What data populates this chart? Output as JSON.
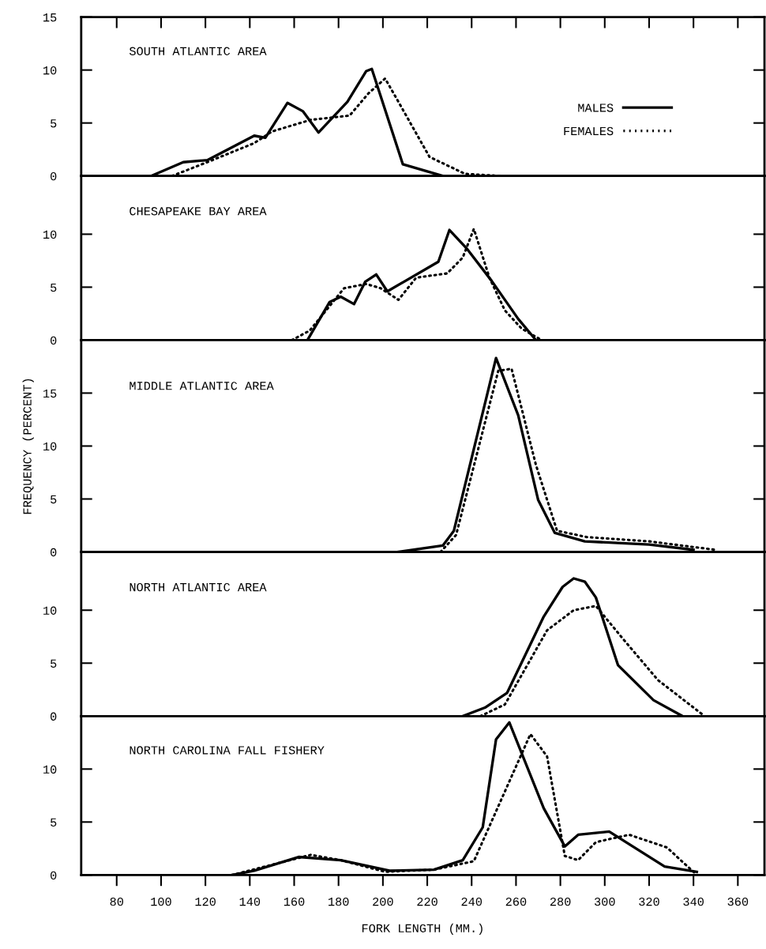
{
  "chart_data": [
    {
      "type": "line",
      "title": "SOUTH ATLANTIC AREA",
      "xlim": [
        64,
        372
      ],
      "ylim": [
        0,
        15
      ],
      "xticks": [
        80,
        100,
        120,
        140,
        160,
        180,
        200,
        220,
        240,
        260,
        280,
        300,
        320,
        340,
        360
      ],
      "yticks": [
        0,
        5,
        10,
        15
      ],
      "tick_labels": "y",
      "legend": "right",
      "series": [
        {
          "name": "MALES",
          "color": "#000000",
          "line_style": "solid",
          "x": [
            95.5,
            110,
            121,
            142,
            147,
            157,
            164,
            171,
            184,
            192.5,
            195,
            209,
            227
          ],
          "values": [
            0,
            1.3,
            1.5,
            3.8,
            3.6,
            6.9,
            6.1,
            4.1,
            7,
            9.9,
            10.1,
            1.1,
            0
          ]
        },
        {
          "name": "FEMALES",
          "color": "#000000",
          "line_style": "dotted",
          "x": [
            105,
            122,
            142,
            150,
            167.5,
            185,
            193.5,
            201,
            207,
            221,
            237,
            253
          ],
          "values": [
            0,
            1.4,
            3.1,
            4.2,
            5.3,
            5.7,
            7.8,
            9.2,
            7,
            1.8,
            0.2,
            0
          ]
        }
      ]
    },
    {
      "type": "line",
      "title": "CHESAPEAKE BAY AREA",
      "xlim": [
        64,
        372
      ],
      "ylim": [
        0,
        15.5
      ],
      "yticks": [
        0,
        5,
        10
      ],
      "tick_labels": "y",
      "series": [
        {
          "color": "#000000",
          "line_style": "solid",
          "x": [
            166,
            176,
            181,
            187,
            192,
            197,
            202,
            225,
            230,
            238,
            249,
            261,
            269
          ],
          "values": [
            0,
            3.6,
            4.1,
            3.4,
            5.5,
            6.2,
            4.6,
            7.4,
            10.4,
            8.6,
            5.6,
            2,
            0
          ]
        },
        {
          "color": "#000000",
          "line_style": "dotted",
          "x": [
            159,
            167,
            182.5,
            192.5,
            199,
            207,
            215,
            229,
            236,
            241,
            248,
            255,
            262.5,
            271.5
          ],
          "values": [
            0,
            0.9,
            4.9,
            5.3,
            4.9,
            3.8,
            5.9,
            6.3,
            7.8,
            10.5,
            5.9,
            2.8,
            1.1,
            0
          ]
        }
      ]
    },
    {
      "type": "line",
      "title": "MIDDLE ATLANTIC AREA",
      "ylabel": "FREQUENCY (PERCENT)",
      "xlim": [
        64,
        372
      ],
      "ylim": [
        0,
        20
      ],
      "yticks": [
        0,
        5,
        10,
        15
      ],
      "tick_labels": "y",
      "series": [
        {
          "color": "#000000",
          "line_style": "solid",
          "x": [
            207,
            227,
            232,
            251,
            261,
            270,
            277.5,
            291,
            320,
            340
          ],
          "values": [
            0,
            0.6,
            2,
            18.3,
            12.9,
            4.9,
            1.8,
            1.0,
            0.7,
            0.2
          ]
        },
        {
          "color": "#000000",
          "line_style": "dotted",
          "x": [
            226,
            233,
            252,
            258,
            269,
            278.5,
            292,
            320,
            350
          ],
          "values": [
            0,
            1.6,
            17.1,
            17.3,
            8.2,
            2,
            1.4,
            1.0,
            0.2
          ]
        }
      ]
    },
    {
      "type": "line",
      "title": "NORTH ATLANTIC AREA",
      "xlim": [
        64,
        372
      ],
      "ylim": [
        0,
        15.5
      ],
      "yticks": [
        0,
        5,
        10
      ],
      "tick_labels": "y",
      "series": [
        {
          "color": "#000000",
          "line_style": "solid",
          "x": [
            236,
            246,
            256,
            272.5,
            281,
            286,
            291,
            296,
            306,
            322,
            335
          ],
          "values": [
            0,
            0.8,
            2.2,
            9.4,
            12.2,
            13,
            12.7,
            11.2,
            4.8,
            1.5,
            0
          ]
        },
        {
          "color": "#000000",
          "line_style": "dotted",
          "x": [
            244,
            255,
            274,
            286,
            296,
            309,
            324,
            345
          ],
          "values": [
            0,
            1.1,
            8.1,
            10,
            10.4,
            7.1,
            3.4,
            0
          ]
        }
      ]
    },
    {
      "type": "line",
      "title": "NORTH CAROLINA FALL FISHERY",
      "xlabel": "FORK LENGTH (MM.)",
      "xlim": [
        64,
        372
      ],
      "ylim": [
        0,
        15
      ],
      "xticks": [
        80,
        100,
        120,
        140,
        160,
        180,
        200,
        220,
        240,
        260,
        280,
        300,
        320,
        340,
        360
      ],
      "yticks": [
        0,
        5,
        10
      ],
      "series": [
        {
          "color": "#000000",
          "line_style": "solid",
          "x": [
            132,
            142,
            162,
            181,
            203,
            223,
            236,
            245,
            251,
            257,
            272.5,
            282,
            288,
            302,
            327,
            341.5
          ],
          "values": [
            0,
            0.4,
            1.7,
            1.4,
            0.4,
            0.5,
            1.4,
            4.5,
            12.8,
            14.4,
            6.3,
            2.7,
            3.8,
            4.1,
            0.8,
            0.3
          ]
        },
        {
          "color": "#000000",
          "line_style": "dotted",
          "x": [
            132,
            167.5,
            181,
            201,
            223,
            241,
            266.5,
            274,
            282,
            288,
            296,
            311,
            328,
            341.5
          ],
          "values": [
            0,
            1.9,
            1.4,
            0.3,
            0.5,
            1.3,
            13.3,
            11.2,
            1.8,
            1.4,
            3.1,
            3.8,
            2.6,
            0
          ]
        }
      ]
    }
  ]
}
